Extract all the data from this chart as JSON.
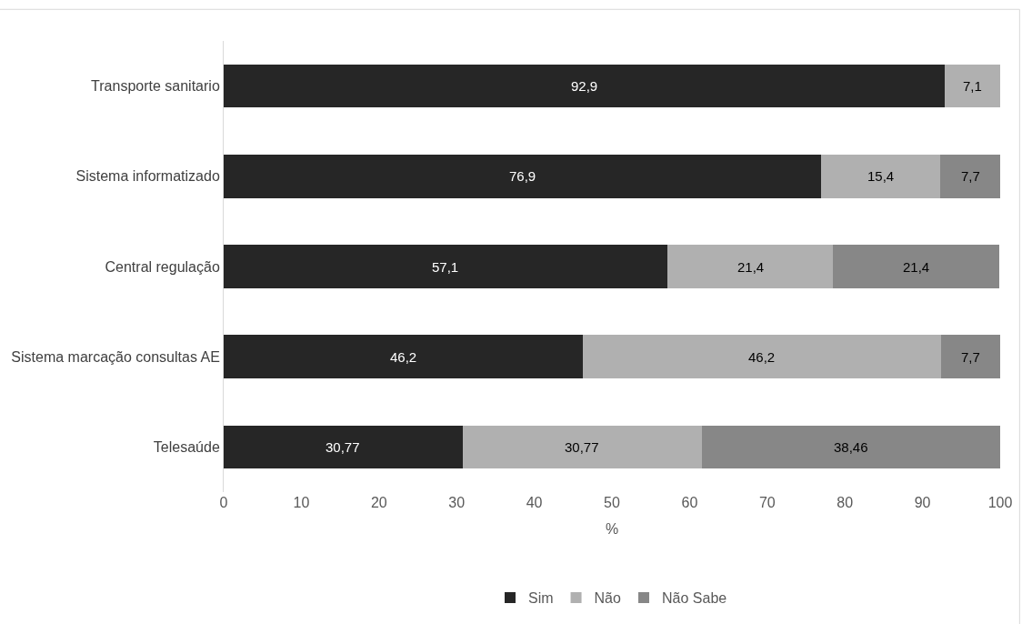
{
  "chart_data": {
    "type": "bar",
    "orientation": "horizontal",
    "stacked": true,
    "xlabel": "%",
    "categories": [
      "Transporte sanitario",
      "Sistema informatizado",
      "Central regulação",
      "Sistema marcação consultas AE",
      "Telesaúde"
    ],
    "series": [
      {
        "name": "Sim",
        "color": "#262626",
        "values": [
          92.9,
          76.9,
          57.1,
          46.2,
          30.77
        ],
        "value_labels": [
          "92,9",
          "76,9",
          "57,1",
          "46,2",
          "30,77"
        ]
      },
      {
        "name": "Não",
        "color": "#b0b0b0",
        "values": [
          7.1,
          15.4,
          21.4,
          46.2,
          30.77
        ],
        "value_labels": [
          "7,1",
          "15,4",
          "21,4",
          "46,2",
          "30,77"
        ]
      },
      {
        "name": "Não Sabe",
        "color": "#878787",
        "values": [
          null,
          7.7,
          21.4,
          7.7,
          38.46
        ],
        "value_labels": [
          null,
          "7,7",
          "21,4",
          "7,7",
          "38,46"
        ]
      }
    ],
    "xlim": [
      0,
      100
    ],
    "xticks": [
      0,
      10,
      20,
      30,
      40,
      50,
      60,
      70,
      80,
      90,
      100
    ],
    "grid": false,
    "legend": "bottom"
  }
}
